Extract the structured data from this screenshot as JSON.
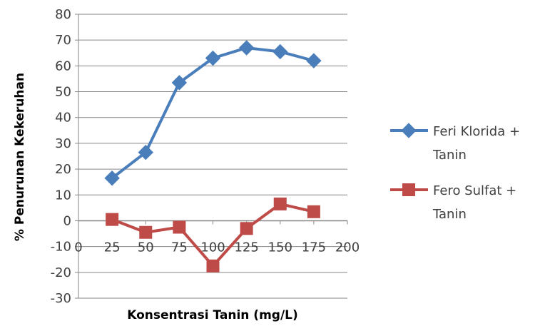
{
  "chart_data": {
    "type": "line",
    "title": "",
    "xlabel": "Konsentrasi Tanin (mg/L)",
    "ylabel": "% Penurunan Kekeruhan",
    "xlim": [
      0,
      200
    ],
    "ylim": [
      -30,
      80
    ],
    "xticks": [
      0,
      25,
      50,
      75,
      100,
      125,
      150,
      175,
      200
    ],
    "yticks": [
      80,
      70,
      60,
      50,
      40,
      30,
      20,
      10,
      0,
      -10,
      -20,
      -30
    ],
    "grid": {
      "horizontal": true,
      "vertical": false
    },
    "legend_position": "right",
    "x": [
      25,
      50,
      75,
      100,
      125,
      150,
      175
    ],
    "series": [
      {
        "name": "Feri Klorida + Tanin",
        "legend_lines": [
          "Feri Klorida +",
          "Tanin"
        ],
        "values": [
          16.5,
          26.5,
          53.5,
          63,
          67,
          65.5,
          62
        ],
        "color": "#4a7ebb",
        "marker": "diamond"
      },
      {
        "name": "Fero Sulfat + Tanin",
        "legend_lines": [
          "Fero Sulfat +",
          "Tanin"
        ],
        "values": [
          0.5,
          -4.5,
          -2.5,
          -17.5,
          -3,
          6.5,
          3.5
        ],
        "color": "#be4b48",
        "marker": "square"
      }
    ]
  }
}
